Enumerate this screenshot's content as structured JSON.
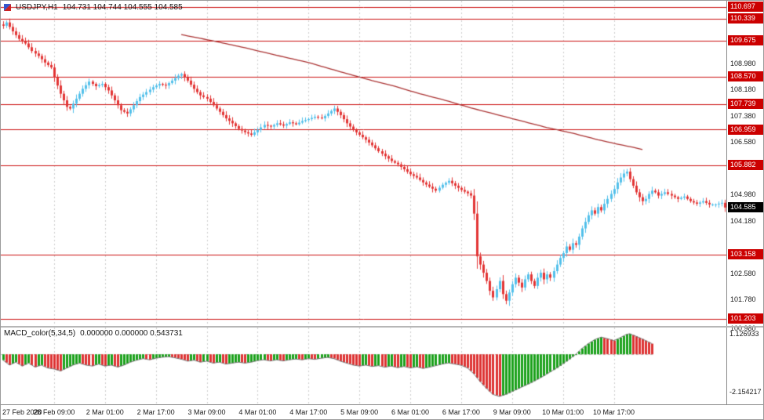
{
  "header": {
    "symbol": "USDJPY,H1",
    "ohlc": "104.731 104.744 104.555 104.585"
  },
  "indicator": {
    "name": "MACD_color(5,34,5)",
    "values": "0.000000 0.000000 0.543731",
    "scale_max": "1.126933",
    "scale_min": "-2.154217"
  },
  "colors": {
    "bull": "#53c0ea",
    "bear": "#e23535",
    "ma": "#aa3333",
    "level": "#cc1111",
    "grid": "#cccccc",
    "macd_up": "#1ba11b",
    "macd_down": "#dd3333",
    "envelope": "#777777",
    "zero": "#c0c0c0",
    "badge_red": "#cc0000",
    "badge_black": "#000000"
  },
  "render": {
    "bar_step": 4.055,
    "first_x": 3,
    "body_width": 3,
    "wick_amp": 0.1
  },
  "time_axis": {
    "labels": [
      {
        "bar": 0,
        "label": "27 Feb 2020"
      },
      {
        "bar": 16,
        "label": "28 Feb 09:00"
      },
      {
        "bar": 32,
        "label": "2 Mar 01:00"
      },
      {
        "bar": 48,
        "label": "2 Mar 17:00"
      },
      {
        "bar": 64,
        "label": "3 Mar 09:00"
      },
      {
        "bar": 80,
        "label": "4 Mar 01:00"
      },
      {
        "bar": 96,
        "label": "4 Mar 17:00"
      },
      {
        "bar": 112,
        "label": "5 Mar 09:00"
      },
      {
        "bar": 128,
        "label": "6 Mar 01:00"
      },
      {
        "bar": 144,
        "label": "6 Mar 17:00"
      },
      {
        "bar": 160,
        "label": "9 Mar 09:00"
      },
      {
        "bar": 176,
        "label": "10 Mar 01:00"
      },
      {
        "bar": 192,
        "label": "10 Mar 17:00"
      }
    ]
  },
  "chart_data": [
    {
      "type": "candlestick",
      "symbol": "USDJPY",
      "timeframe": "H1",
      "bars": 228,
      "ylim": [
        100.98,
        110.88
      ],
      "current_price": 104.585,
      "ticks": [
        108.98,
        108.18,
        107.38,
        106.58,
        104.98,
        104.18,
        102.58,
        101.78,
        100.98
      ],
      "levels": [
        110.697,
        110.339,
        109.675,
        108.57,
        107.739,
        106.959,
        105.882,
        103.158,
        101.203
      ],
      "close_path": [
        [
          0,
          110.12
        ],
        [
          1,
          110.22
        ],
        [
          3,
          109.95
        ],
        [
          5,
          109.72
        ],
        [
          7,
          109.58
        ],
        [
          9,
          109.35
        ],
        [
          11,
          109.2
        ],
        [
          13,
          109.0
        ],
        [
          15,
          108.85
        ],
        [
          16,
          108.55
        ],
        [
          18,
          108.05
        ],
        [
          20,
          107.65
        ],
        [
          21,
          107.6
        ],
        [
          23,
          107.9
        ],
        [
          25,
          108.2
        ],
        [
          27,
          108.42
        ],
        [
          29,
          108.28
        ],
        [
          31,
          108.35
        ],
        [
          33,
          108.15
        ],
        [
          35,
          107.85
        ],
        [
          37,
          107.55
        ],
        [
          39,
          107.45
        ],
        [
          41,
          107.7
        ],
        [
          43,
          107.95
        ],
        [
          45,
          108.1
        ],
        [
          47,
          108.25
        ],
        [
          49,
          108.35
        ],
        [
          51,
          108.3
        ],
        [
          53,
          108.45
        ],
        [
          55,
          108.6
        ],
        [
          56,
          108.65
        ],
        [
          58,
          108.45
        ],
        [
          60,
          108.2
        ],
        [
          62,
          108.0
        ],
        [
          64,
          107.9
        ],
        [
          66,
          107.7
        ],
        [
          68,
          107.5
        ],
        [
          70,
          107.3
        ],
        [
          72,
          107.15
        ],
        [
          74,
          106.98
        ],
        [
          76,
          106.88
        ],
        [
          78,
          106.8
        ],
        [
          80,
          106.95
        ],
        [
          82,
          107.1
        ],
        [
          84,
          107.05
        ],
        [
          86,
          107.15
        ],
        [
          88,
          107.08
        ],
        [
          90,
          107.18
        ],
        [
          92,
          107.12
        ],
        [
          94,
          107.22
        ],
        [
          96,
          107.28
        ],
        [
          98,
          107.35
        ],
        [
          100,
          107.3
        ],
        [
          102,
          107.45
        ],
        [
          104,
          107.6
        ],
        [
          106,
          107.4
        ],
        [
          108,
          107.15
        ],
        [
          110,
          106.95
        ],
        [
          112,
          106.8
        ],
        [
          114,
          106.65
        ],
        [
          116,
          106.48
        ],
        [
          118,
          106.3
        ],
        [
          120,
          106.15
        ],
        [
          122,
          106.0
        ],
        [
          124,
          105.9
        ],
        [
          126,
          105.75
        ],
        [
          128,
          105.6
        ],
        [
          130,
          105.5
        ],
        [
          132,
          105.35
        ],
        [
          134,
          105.22
        ],
        [
          136,
          105.1
        ],
        [
          138,
          105.28
        ],
        [
          140,
          105.4
        ],
        [
          142,
          105.25
        ],
        [
          144,
          105.12
        ],
        [
          146,
          105.02
        ],
        [
          147,
          104.95
        ],
        [
          148,
          104.4
        ],
        [
          149,
          103.1
        ],
        [
          150,
          102.85
        ],
        [
          151,
          102.6
        ],
        [
          152,
          102.35
        ],
        [
          153,
          102.05
        ],
        [
          154,
          101.85
        ],
        [
          155,
          102.1
        ],
        [
          156,
          102.35
        ],
        [
          157,
          101.95
        ],
        [
          158,
          101.75
        ],
        [
          159,
          102.0
        ],
        [
          160,
          102.25
        ],
        [
          161,
          102.45
        ],
        [
          162,
          102.3
        ],
        [
          163,
          102.15
        ],
        [
          164,
          102.4
        ],
        [
          165,
          102.55
        ],
        [
          166,
          102.35
        ],
        [
          167,
          102.2
        ],
        [
          168,
          102.45
        ],
        [
          169,
          102.6
        ],
        [
          170,
          102.4
        ],
        [
          171,
          102.55
        ],
        [
          172,
          102.45
        ],
        [
          173,
          102.65
        ],
        [
          174,
          102.85
        ],
        [
          175,
          103.05
        ],
        [
          176,
          103.2
        ],
        [
          177,
          103.4
        ],
        [
          178,
          103.3
        ],
        [
          179,
          103.5
        ],
        [
          180,
          103.45
        ],
        [
          181,
          103.7
        ],
        [
          182,
          103.95
        ],
        [
          183,
          104.15
        ],
        [
          184,
          104.35
        ],
        [
          185,
          104.5
        ],
        [
          186,
          104.4
        ],
        [
          187,
          104.6
        ],
        [
          188,
          104.5
        ],
        [
          189,
          104.7
        ],
        [
          190,
          104.85
        ],
        [
          191,
          105.0
        ],
        [
          192,
          105.15
        ],
        [
          193,
          105.35
        ],
        [
          194,
          105.5
        ],
        [
          195,
          105.62
        ],
        [
          196,
          105.68
        ],
        [
          197,
          105.45
        ],
        [
          198,
          105.25
        ],
        [
          199,
          105.05
        ],
        [
          200,
          104.9
        ],
        [
          201,
          104.78
        ],
        [
          202,
          104.85
        ],
        [
          203,
          105.0
        ],
        [
          204,
          105.1
        ],
        [
          205,
          105.05
        ],
        [
          206,
          104.95
        ],
        [
          208,
          105.05
        ],
        [
          210,
          104.95
        ],
        [
          212,
          104.85
        ],
        [
          214,
          104.92
        ],
        [
          216,
          104.78
        ],
        [
          218,
          104.7
        ],
        [
          220,
          104.78
        ],
        [
          222,
          104.68
        ],
        [
          224,
          104.68
        ],
        [
          226,
          104.73
        ],
        [
          227,
          104.585
        ]
      ],
      "ma_path": [
        [
          56,
          109.85
        ],
        [
          66,
          109.66
        ],
        [
          76,
          109.45
        ],
        [
          86,
          109.22
        ],
        [
          96,
          109.0
        ],
        [
          106,
          108.72
        ],
        [
          116,
          108.45
        ],
        [
          123,
          108.28
        ],
        [
          131,
          108.05
        ],
        [
          139,
          107.85
        ],
        [
          147,
          107.62
        ],
        [
          155,
          107.42
        ],
        [
          163,
          107.22
        ],
        [
          171,
          107.02
        ],
        [
          179,
          106.85
        ],
        [
          187,
          106.65
        ],
        [
          193,
          106.52
        ],
        [
          198,
          106.42
        ],
        [
          201,
          106.35
        ]
      ]
    },
    {
      "type": "bar",
      "name": "MACD histogram",
      "bars": 205,
      "ylim": [
        -2.554,
        1.367
      ],
      "value_path": [
        [
          0,
          -0.3
        ],
        [
          2,
          -0.55
        ],
        [
          4,
          -0.4
        ],
        [
          6,
          -0.6
        ],
        [
          8,
          -0.45
        ],
        [
          10,
          -0.65
        ],
        [
          12,
          -0.55
        ],
        [
          14,
          -0.7
        ],
        [
          16,
          -0.75
        ],
        [
          18,
          -0.85
        ],
        [
          20,
          -0.7
        ],
        [
          22,
          -0.55
        ],
        [
          24,
          -0.45
        ],
        [
          26,
          -0.55
        ],
        [
          28,
          -0.6
        ],
        [
          30,
          -0.5
        ],
        [
          32,
          -0.6
        ],
        [
          34,
          -0.55
        ],
        [
          36,
          -0.65
        ],
        [
          38,
          -0.55
        ],
        [
          40,
          -0.4
        ],
        [
          42,
          -0.3
        ],
        [
          44,
          -0.22
        ],
        [
          46,
          -0.28
        ],
        [
          48,
          -0.2
        ],
        [
          50,
          -0.15
        ],
        [
          52,
          -0.12
        ],
        [
          54,
          -0.18
        ],
        [
          56,
          -0.25
        ],
        [
          58,
          -0.35
        ],
        [
          60,
          -0.3
        ],
        [
          62,
          -0.4
        ],
        [
          64,
          -0.35
        ],
        [
          66,
          -0.45
        ],
        [
          68,
          -0.4
        ],
        [
          70,
          -0.5
        ],
        [
          72,
          -0.45
        ],
        [
          74,
          -0.4
        ],
        [
          76,
          -0.45
        ],
        [
          78,
          -0.4
        ],
        [
          80,
          -0.32
        ],
        [
          82,
          -0.28
        ],
        [
          84,
          -0.34
        ],
        [
          86,
          -0.28
        ],
        [
          88,
          -0.34
        ],
        [
          90,
          -0.28
        ],
        [
          92,
          -0.24
        ],
        [
          94,
          -0.28
        ],
        [
          96,
          -0.22
        ],
        [
          98,
          -0.26
        ],
        [
          100,
          -0.2
        ],
        [
          102,
          -0.16
        ],
        [
          104,
          -0.22
        ],
        [
          106,
          -0.35
        ],
        [
          108,
          -0.45
        ],
        [
          110,
          -0.55
        ],
        [
          112,
          -0.6
        ],
        [
          114,
          -0.55
        ],
        [
          116,
          -0.62
        ],
        [
          118,
          -0.58
        ],
        [
          120,
          -0.66
        ],
        [
          122,
          -0.6
        ],
        [
          124,
          -0.68
        ],
        [
          126,
          -0.62
        ],
        [
          128,
          -0.7
        ],
        [
          130,
          -0.64
        ],
        [
          132,
          -0.72
        ],
        [
          134,
          -0.66
        ],
        [
          136,
          -0.58
        ],
        [
          138,
          -0.5
        ],
        [
          140,
          -0.44
        ],
        [
          142,
          -0.5
        ],
        [
          144,
          -0.56
        ],
        [
          146,
          -0.7
        ],
        [
          148,
          -1.0
        ],
        [
          150,
          -1.4
        ],
        [
          152,
          -1.75
        ],
        [
          154,
          -2.05
        ],
        [
          156,
          -2.15
        ],
        [
          158,
          -2.05
        ],
        [
          160,
          -1.9
        ],
        [
          162,
          -1.75
        ],
        [
          164,
          -1.6
        ],
        [
          166,
          -1.45
        ],
        [
          168,
          -1.28
        ],
        [
          170,
          -1.1
        ],
        [
          172,
          -0.9
        ],
        [
          174,
          -0.7
        ],
        [
          176,
          -0.48
        ],
        [
          178,
          -0.25
        ],
        [
          180,
          0.0
        ],
        [
          182,
          0.3
        ],
        [
          184,
          0.55
        ],
        [
          186,
          0.75
        ],
        [
          188,
          0.88
        ],
        [
          190,
          0.8
        ],
        [
          192,
          0.7
        ],
        [
          194,
          0.85
        ],
        [
          196,
          1.02
        ],
        [
          197,
          1.05
        ],
        [
          199,
          0.92
        ],
        [
          201,
          0.78
        ],
        [
          203,
          0.62
        ],
        [
          204,
          0.544
        ]
      ]
    }
  ]
}
